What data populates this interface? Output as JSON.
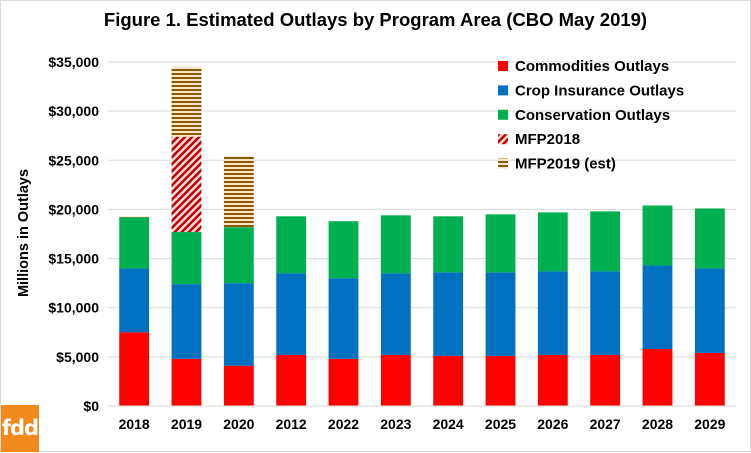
{
  "chart_data": {
    "type": "bar",
    "stacked": true,
    "title": "Figure 1. Estimated Outlays by Program Area (CBO May 2019)",
    "ylabel": "Millions in Outlays",
    "xlabel": "",
    "ylim": [
      0,
      35000
    ],
    "yticks": [
      "$0",
      "$5,000",
      "$10,000",
      "$15,000",
      "$20,000",
      "$25,000",
      "$30,000",
      "$35,000"
    ],
    "ytick_values": [
      0,
      5000,
      10000,
      15000,
      20000,
      25000,
      30000,
      35000
    ],
    "grid": true,
    "legend_position": "top-right",
    "categories": [
      "2018",
      "2019",
      "2020",
      "2012",
      "2022",
      "2023",
      "2024",
      "2025",
      "2026",
      "2027",
      "2028",
      "2029"
    ],
    "series": [
      {
        "name": "Commodities Outlays",
        "color": "#ff0000",
        "pattern": "solid",
        "values": [
          7500,
          4800,
          4100,
          5200,
          4800,
          5200,
          5100,
          5100,
          5200,
          5200,
          5800,
          5400
        ]
      },
      {
        "name": "Crop Insurance Outlays",
        "color": "#0070c0",
        "pattern": "solid",
        "values": [
          6500,
          7600,
          8400,
          8300,
          8200,
          8300,
          8500,
          8500,
          8500,
          8500,
          8500,
          8600
        ]
      },
      {
        "name": "Conservation Outlays",
        "color": "#00b050",
        "pattern": "solid",
        "values": [
          5200,
          5300,
          5700,
          5800,
          5800,
          5900,
          5700,
          5900,
          6000,
          6100,
          6100,
          6100
        ]
      },
      {
        "name": "MFP2018",
        "color": "#c00000",
        "pattern": "diagonal",
        "values": [
          0,
          9700,
          0,
          0,
          0,
          0,
          0,
          0,
          0,
          0,
          0,
          0
        ]
      },
      {
        "name": "MFP2019 (est)",
        "color": "#8b5a00",
        "pattern": "horizontal",
        "values": [
          100,
          7100,
          7200,
          0,
          0,
          0,
          0,
          0,
          0,
          0,
          0,
          0
        ]
      }
    ]
  },
  "brand": {
    "logo_text": "fdd",
    "logo_color": "#f08a1d"
  }
}
